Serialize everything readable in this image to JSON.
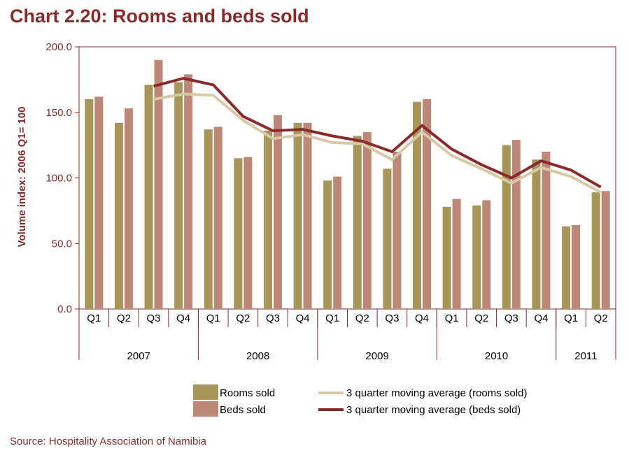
{
  "title": "Chart 2.20: Rooms and beds sold",
  "source": "Source: Hospitality Association of Namibia",
  "colors": {
    "rooms": "#a8955a",
    "beds": "#bd8878",
    "ma_rooms": "#d8c8a6",
    "ma_beds": "#8b2a2a",
    "axis": "#8b2a2a",
    "text": "#8b2a2a"
  },
  "chart_data": {
    "type": "bar",
    "ylabel": "Volume index:  2006  Q1= 100",
    "ylim": [
      0,
      200
    ],
    "yticks": [
      "0.0",
      "50.0",
      "100.0",
      "150.0",
      "200.0"
    ],
    "categories": [
      "Q1",
      "Q2",
      "Q3",
      "Q4",
      "Q1",
      "Q2",
      "Q3",
      "Q4",
      "Q1",
      "Q2",
      "Q3",
      "Q4",
      "Q1",
      "Q2",
      "Q3",
      "Q4",
      "Q1",
      "Q2"
    ],
    "groups": [
      {
        "label": "2007",
        "count": 4
      },
      {
        "label": "2008",
        "count": 4
      },
      {
        "label": "2009",
        "count": 4
      },
      {
        "label": "2010",
        "count": 4
      },
      {
        "label": "2011",
        "count": 2
      }
    ],
    "series": [
      {
        "name": "Rooms sold",
        "kind": "bar",
        "values": [
          160,
          142,
          171,
          173,
          137,
          115,
          136,
          142,
          98,
          132,
          107,
          158,
          78,
          79,
          125,
          114,
          63,
          89
        ]
      },
      {
        "name": "Beds sold",
        "kind": "bar",
        "values": [
          162,
          153,
          190,
          179,
          139,
          116,
          148,
          142,
          101,
          135,
          120,
          160,
          84,
          83,
          129,
          120,
          64,
          90
        ]
      },
      {
        "name": "3 quarter moving average (rooms sold)",
        "kind": "line",
        "values": [
          null,
          null,
          160,
          164,
          163,
          144,
          130,
          133,
          127,
          126,
          114,
          135,
          117,
          107,
          96,
          108,
          101,
          89
        ]
      },
      {
        "name": "3 quarter moving average (beds sold)",
        "kind": "line",
        "values": [
          null,
          null,
          170,
          176,
          171,
          147,
          136,
          137,
          132,
          128,
          120,
          140,
          122,
          110,
          100,
          113,
          106,
          93
        ]
      }
    ],
    "legend": [
      {
        "label": "Rooms sold",
        "swatch": "box",
        "color_key": "rooms"
      },
      {
        "label": "Beds sold",
        "swatch": "box",
        "color_key": "beds"
      },
      {
        "label": "3 quarter moving average (rooms sold)",
        "swatch": "line",
        "color_key": "ma_rooms"
      },
      {
        "label": "3 quarter moving average (beds sold)",
        "swatch": "line",
        "color_key": "ma_beds"
      }
    ],
    "legend_position": "bottom",
    "grid": false
  }
}
